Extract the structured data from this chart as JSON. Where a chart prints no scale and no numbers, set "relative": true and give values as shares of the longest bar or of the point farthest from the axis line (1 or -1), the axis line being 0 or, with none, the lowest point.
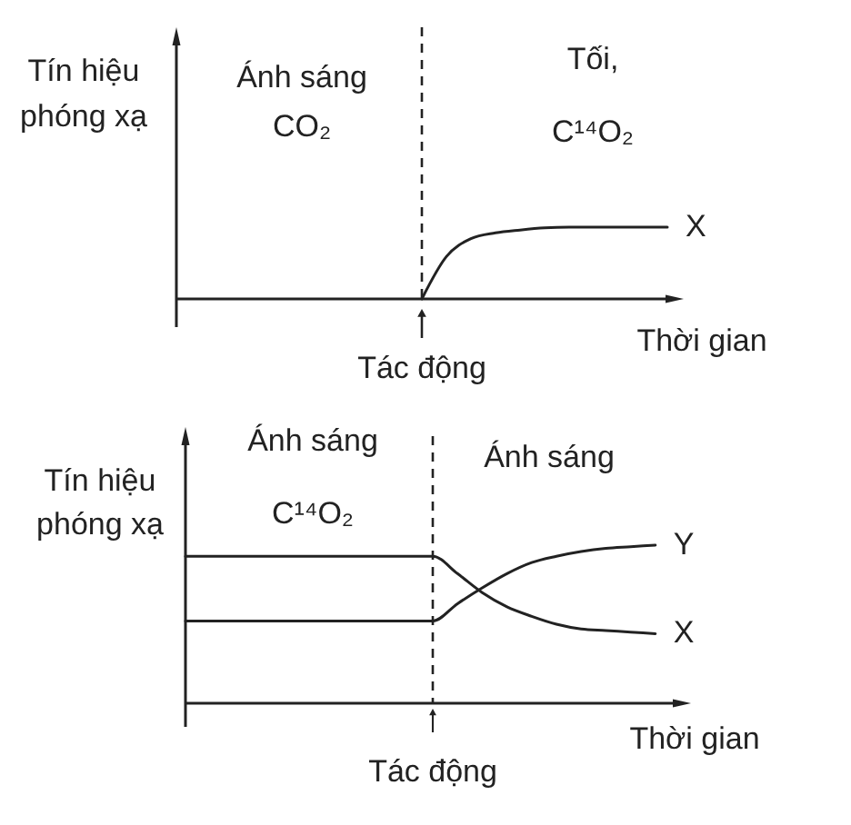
{
  "chart_data": [
    {
      "type": "line",
      "ylabel": "Tín hiệu phóng xạ",
      "xlabel": "Thời gian",
      "annotations": [
        "Ánh sáng",
        "CO₂",
        "Tối,",
        "C¹⁴O₂",
        "Tác động"
      ],
      "categories": [
        null,
        null,
        null,
        null,
        null,
        null,
        null,
        null,
        null,
        null,
        null,
        null,
        null,
        null,
        null,
        null,
        null,
        null,
        null,
        null,
        null
      ],
      "relative": true,
      "tick_labels": false,
      "series": [
        {
          "name": "X",
          "color": "#222222",
          "values": [
            null,
            null,
            null,
            null,
            null,
            null,
            null,
            null,
            null,
            null,
            0,
            0.59,
            0.84,
            0.92,
            0.96,
            0.99,
            1,
            1,
            1,
            1,
            1
          ]
        }
      ]
    },
    {
      "type": "line",
      "ylabel": "Tín hiệu phóng xạ",
      "xlabel": "Thời gian",
      "annotations": [
        "Ánh sáng",
        "C¹⁴O₂",
        "Ánh sáng",
        "Tác động"
      ],
      "categories": [
        null,
        null,
        null,
        null,
        null,
        null,
        null,
        null,
        null,
        null,
        null,
        null,
        null,
        null,
        null,
        null,
        null,
        null,
        null,
        null,
        null
      ],
      "relative": true,
      "tick_labels": false,
      "series": [
        {
          "name": "Y",
          "color": "#222222",
          "values": [
            0.52,
            0.52,
            0.52,
            0.52,
            0.52,
            0.52,
            0.52,
            0.52,
            0.52,
            0.52,
            0.52,
            0.63,
            0.73,
            0.82,
            0.89,
            0.93,
            0.96,
            0.98,
            0.99,
            1,
            null
          ]
        },
        {
          "name": "X",
          "color": "#222222",
          "values": [
            0.93,
            0.93,
            0.93,
            0.93,
            0.93,
            0.93,
            0.93,
            0.93,
            0.93,
            0.93,
            0.93,
            0.82,
            0.7,
            0.61,
            0.55,
            0.5,
            0.47,
            0.46,
            0.45,
            0.44,
            null
          ]
        }
      ]
    }
  ]
}
